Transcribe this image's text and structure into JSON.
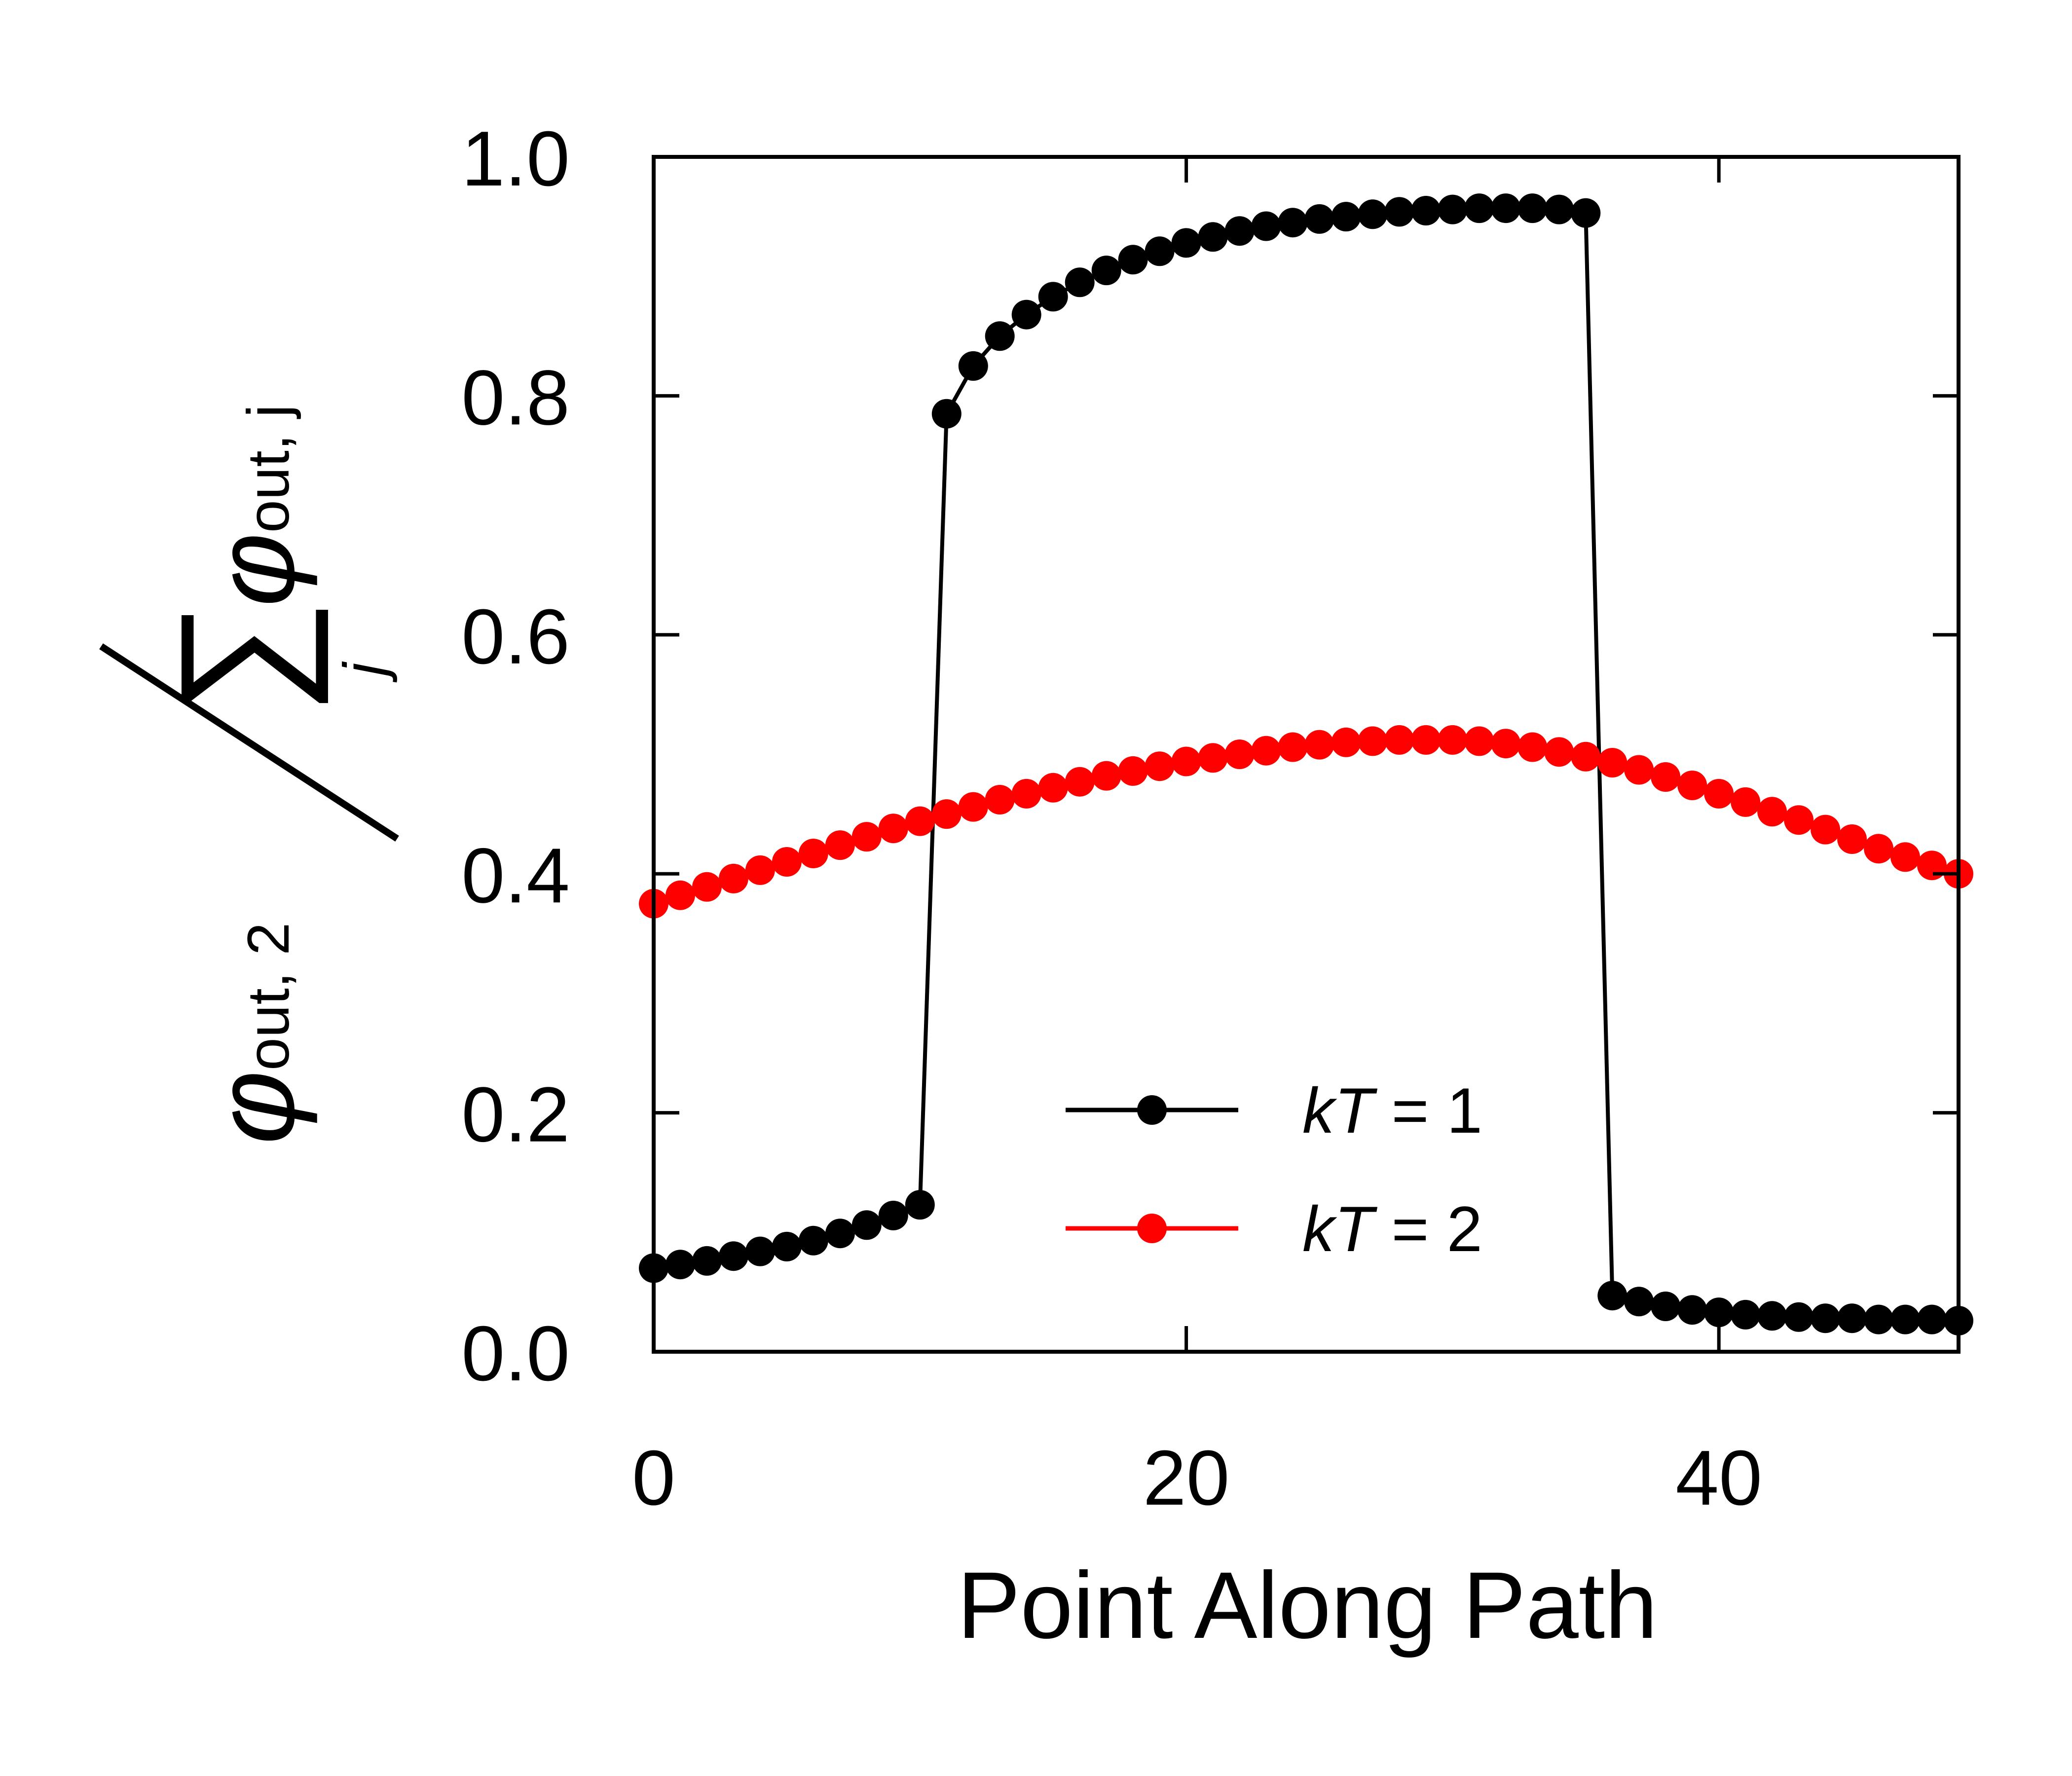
{
  "chart_data": {
    "type": "line",
    "xlabel": "Point Along Path",
    "ylabel": {
      "numerator_symbol": "φ",
      "numerator_subscript": "out, 2",
      "sum_symbol": "∑",
      "sum_index": "j",
      "denominator_symbol": "φ",
      "denominator_subscript": "out, j"
    },
    "xlim": [
      0,
      49
    ],
    "ylim": [
      0,
      1
    ],
    "xticks": [
      0,
      20,
      40
    ],
    "xtick_labels": [
      "0",
      "20",
      "40"
    ],
    "yticks": [
      0,
      0.2,
      0.4,
      0.6,
      0.8,
      1.0
    ],
    "ytick_labels": [
      "0.0",
      "0.2",
      "0.4",
      "0.6",
      "0.8",
      "1.0"
    ],
    "grid": false,
    "legend_position": "lower-center",
    "series": [
      {
        "name": "kT = 1",
        "legend_prefix": "kT",
        "legend_value": "1",
        "color": "#000000",
        "x": [
          0,
          1,
          2,
          3,
          4,
          5,
          6,
          7,
          8,
          9,
          10,
          11,
          12,
          13,
          14,
          15,
          16,
          17,
          18,
          19,
          20,
          21,
          22,
          23,
          24,
          25,
          26,
          27,
          28,
          29,
          30,
          31,
          32,
          33,
          34,
          35,
          36,
          37,
          38,
          39,
          40,
          41,
          42,
          43,
          44,
          45,
          46,
          47,
          48,
          49
        ],
        "y": [
          0.07,
          0.073,
          0.076,
          0.08,
          0.084,
          0.088,
          0.093,
          0.099,
          0.106,
          0.114,
          0.123,
          0.785,
          0.825,
          0.85,
          0.868,
          0.883,
          0.895,
          0.905,
          0.914,
          0.921,
          0.928,
          0.933,
          0.938,
          0.942,
          0.945,
          0.948,
          0.95,
          0.952,
          0.954,
          0.955,
          0.956,
          0.957,
          0.957,
          0.957,
          0.956,
          0.953,
          0.047,
          0.042,
          0.038,
          0.035,
          0.033,
          0.031,
          0.03,
          0.029,
          0.028,
          0.028,
          0.027,
          0.027,
          0.027,
          0.026
        ]
      },
      {
        "name": "kT = 2",
        "legend_prefix": "kT",
        "legend_value": "2",
        "color": "#ff0000",
        "x": [
          0,
          1,
          2,
          3,
          4,
          5,
          6,
          7,
          8,
          9,
          10,
          11,
          12,
          13,
          14,
          15,
          16,
          17,
          18,
          19,
          20,
          21,
          22,
          23,
          24,
          25,
          26,
          27,
          28,
          29,
          30,
          31,
          32,
          33,
          34,
          35,
          36,
          37,
          38,
          39,
          40,
          41,
          42,
          43,
          44,
          45,
          46,
          47,
          48,
          49
        ],
        "y": [
          0.375,
          0.382,
          0.389,
          0.396,
          0.403,
          0.41,
          0.417,
          0.424,
          0.431,
          0.438,
          0.444,
          0.45,
          0.456,
          0.462,
          0.467,
          0.472,
          0.477,
          0.482,
          0.486,
          0.49,
          0.494,
          0.497,
          0.5,
          0.503,
          0.506,
          0.508,
          0.51,
          0.511,
          0.512,
          0.512,
          0.512,
          0.511,
          0.509,
          0.506,
          0.502,
          0.498,
          0.493,
          0.487,
          0.481,
          0.474,
          0.467,
          0.46,
          0.452,
          0.445,
          0.437,
          0.429,
          0.421,
          0.414,
          0.407,
          0.4
        ]
      }
    ]
  }
}
